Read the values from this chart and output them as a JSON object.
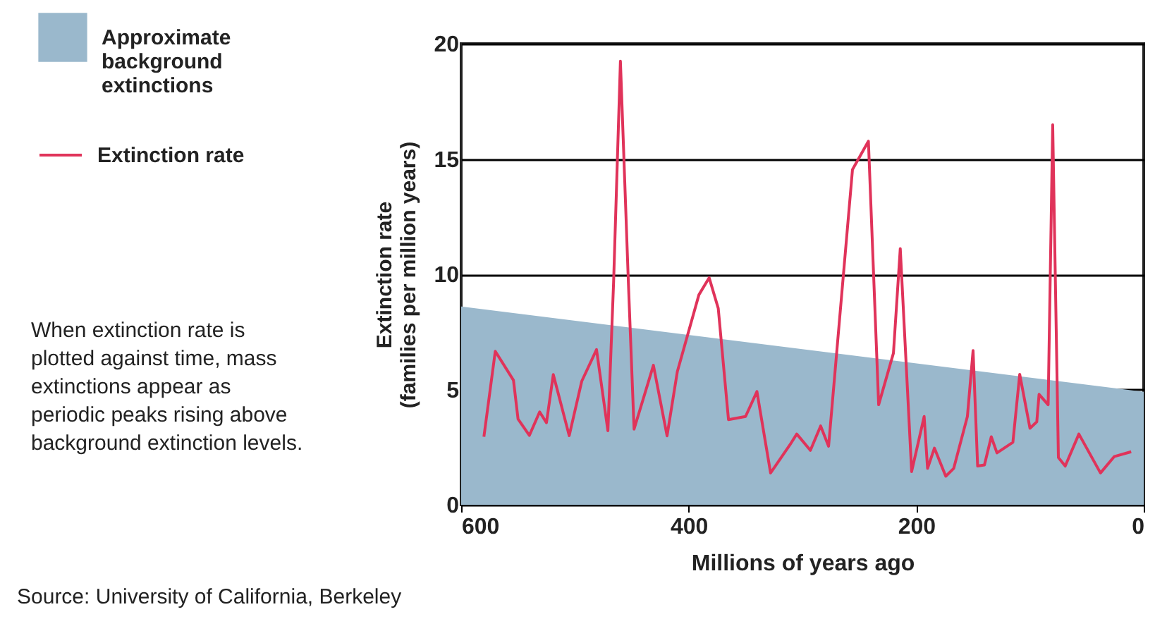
{
  "chart_data": {
    "type": "line",
    "xlabel": "Millions of years ago",
    "ylabel": "Extinction rate\n(families per million years)",
    "xlim": [
      600,
      0
    ],
    "xticks": [
      600,
      400,
      200,
      0
    ],
    "ylim": [
      0,
      20
    ],
    "yticks": [
      0,
      5,
      10,
      15,
      20
    ],
    "grid": "y",
    "legend": "top left",
    "line_style": "solid",
    "series": [
      {
        "name": "Approximate background extinctions",
        "type": "area",
        "color": "#9ab8cc",
        "x": [
          600,
          0
        ],
        "values": [
          8.6,
          4.9
        ]
      },
      {
        "name": "Extinction rate",
        "color": "#e0335a",
        "x": [
          580,
          570,
          554,
          550,
          540,
          531,
          525,
          519,
          505,
          494,
          481,
          471,
          466,
          460,
          453,
          448,
          431,
          419,
          410,
          391,
          382,
          374,
          365,
          350,
          340,
          328,
          311,
          305,
          293,
          284,
          277,
          256,
          242,
          233,
          220,
          214,
          204,
          193,
          190,
          184,
          174,
          167,
          155,
          150,
          146,
          140,
          134,
          129,
          115,
          109,
          100,
          94,
          92,
          84,
          80,
          75,
          69,
          57,
          38,
          26,
          11
        ],
        "values": [
          2.95,
          6.66,
          5.4,
          3.72,
          3.01,
          4.03,
          3.56,
          5.65,
          3.0,
          5.36,
          6.73,
          3.21,
          9.64,
          19.24,
          9.64,
          3.28,
          6.05,
          2.99,
          5.77,
          9.11,
          9.85,
          8.52,
          3.69,
          3.83,
          4.91,
          1.38,
          2.6,
          3.07,
          2.36,
          3.42,
          2.54,
          14.54,
          15.77,
          4.34,
          6.58,
          11.11,
          1.44,
          3.83,
          1.58,
          2.46,
          1.24,
          1.58,
          3.83,
          6.69,
          1.68,
          1.73,
          2.95,
          2.25,
          2.71,
          5.66,
          3.32,
          3.6,
          4.79,
          4.34,
          16.48,
          2.05,
          1.68,
          3.07,
          1.38,
          2.09,
          2.3
        ]
      }
    ],
    "annotations": [
      "When extinction rate is plotted against time, mass extinctions appear as periodic peaks rising above background extinction levels.",
      "Source: University of California, Berkeley"
    ]
  }
}
